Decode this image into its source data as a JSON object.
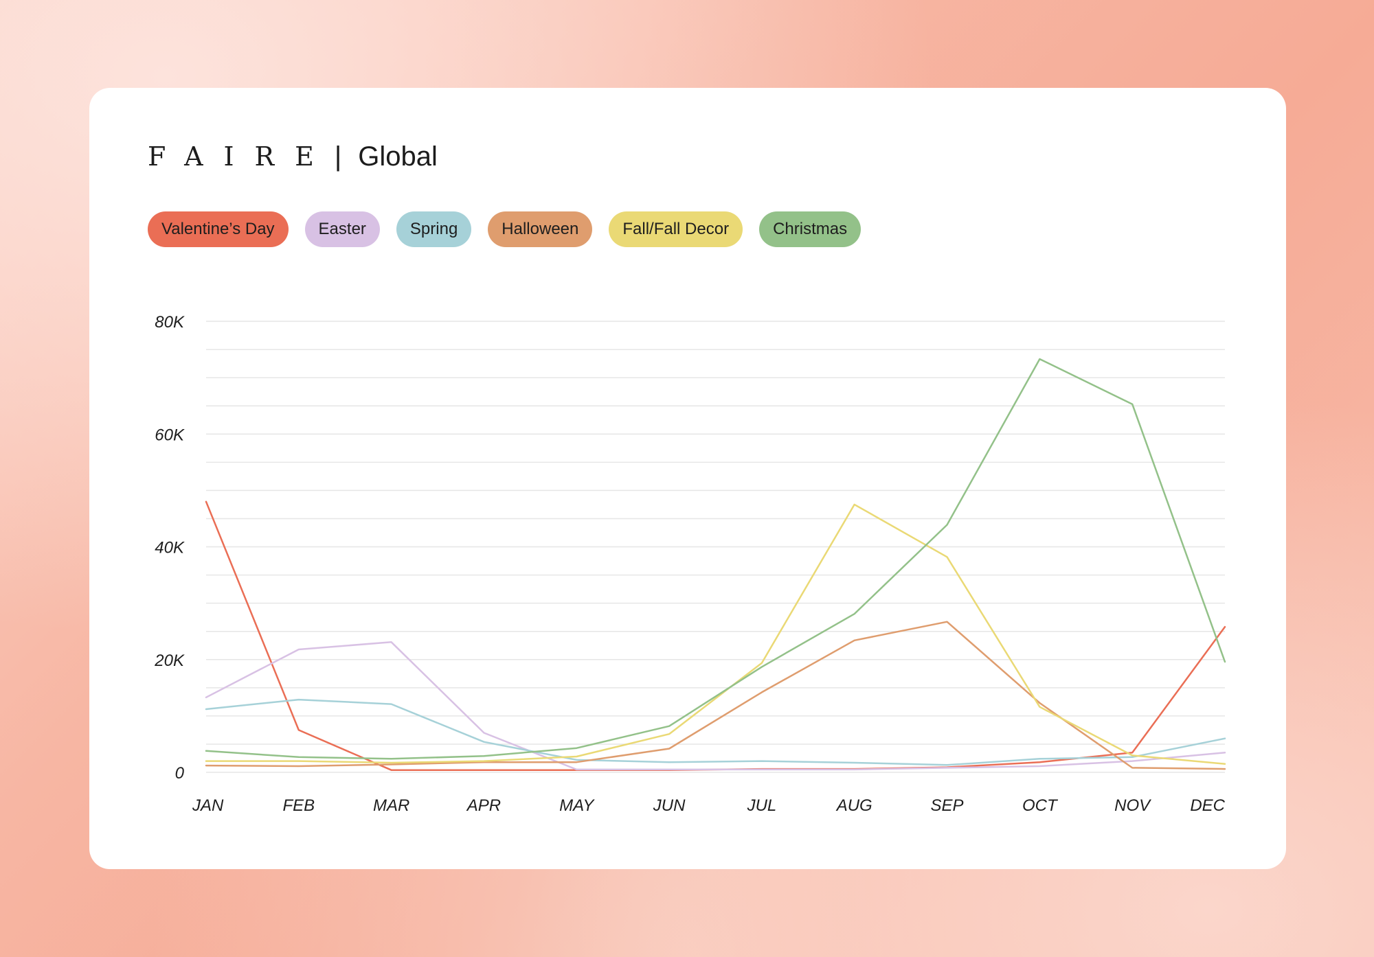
{
  "brand": {
    "logo": "FAIRE",
    "separator": "|",
    "region": "Global"
  },
  "legend": [
    {
      "label": "Valentine’s Day",
      "color": "#ea6e55"
    },
    {
      "label": "Easter",
      "color": "#d8c1e4"
    },
    {
      "label": "Spring",
      "color": "#a6d1d8"
    },
    {
      "label": "Halloween",
      "color": "#df9d6e"
    },
    {
      "label": "Fall/Fall Decor",
      "color": "#ead975"
    },
    {
      "label": "Christmas",
      "color": "#93c189"
    }
  ],
  "chart_data": {
    "type": "line",
    "categories": [
      "JAN",
      "FEB",
      "MAR",
      "APR",
      "MAY",
      "JUN",
      "JUL",
      "AUG",
      "SEP",
      "OCT",
      "NOV",
      "DEC"
    ],
    "ylim": [
      0,
      80000
    ],
    "yticks": [
      0,
      20000,
      40000,
      60000,
      80000
    ],
    "ytick_labels": [
      "0",
      "20K",
      "40K",
      "60K",
      "80K"
    ],
    "grid": true,
    "series": [
      {
        "name": "Valentine’s Day",
        "color": "#ea6e55",
        "values": [
          48000,
          7500,
          400,
          400,
          400,
          400,
          600,
          600,
          900,
          1800,
          3500,
          25800
        ]
      },
      {
        "name": "Easter",
        "color": "#d8c1e4",
        "values": [
          13300,
          21800,
          23100,
          7000,
          500,
          500,
          500,
          500,
          800,
          1100,
          2000,
          3500
        ]
      },
      {
        "name": "Spring",
        "color": "#a6d1d8",
        "values": [
          11200,
          12900,
          12100,
          5400,
          2200,
          1800,
          2000,
          1700,
          1300,
          2400,
          2700,
          6000
        ]
      },
      {
        "name": "Halloween",
        "color": "#df9d6e",
        "values": [
          1200,
          1100,
          1400,
          1800,
          1800,
          4200,
          14200,
          23400,
          26700,
          12300,
          800,
          600
        ]
      },
      {
        "name": "Fall/Fall Decor",
        "color": "#ead975",
        "values": [
          2000,
          2000,
          1700,
          2000,
          2800,
          6800,
          19400,
          47500,
          38200,
          11600,
          3000,
          1500
        ]
      },
      {
        "name": "Christmas",
        "color": "#93c189",
        "values": [
          3800,
          2700,
          2400,
          2900,
          4300,
          8200,
          18700,
          28100,
          43900,
          73300,
          65300,
          19600
        ]
      }
    ]
  }
}
